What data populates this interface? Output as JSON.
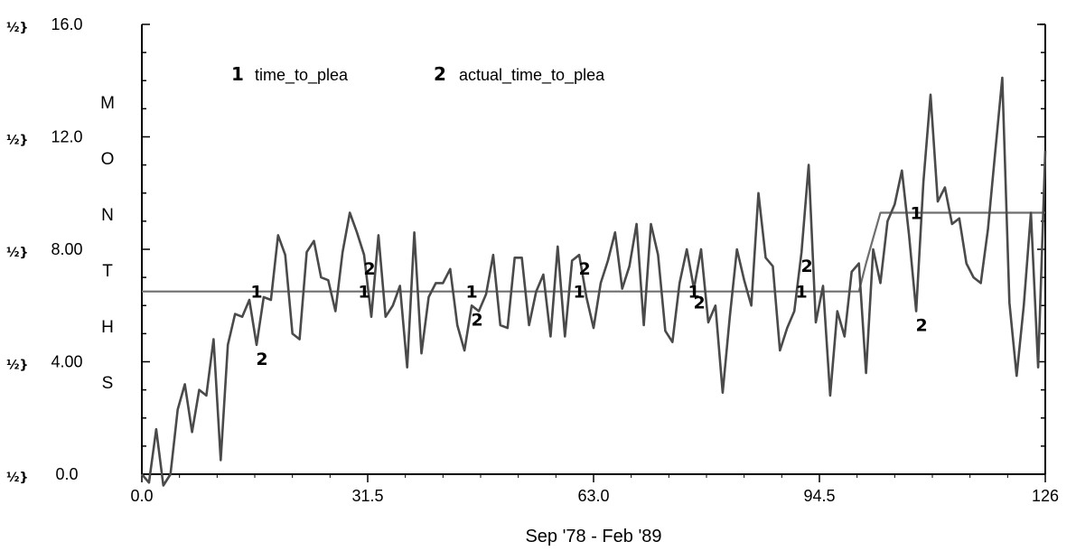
{
  "chart_data": {
    "type": "line",
    "xlabel": "Sep '78 - Feb '89",
    "ylabel": "MONTHS",
    "xlim": [
      0,
      126
    ],
    "ylim": [
      0,
      16
    ],
    "x_ticks": [
      "0.0",
      "31.5",
      "63.0",
      "94.5",
      "126"
    ],
    "y_ticks": [
      "0.0",
      "4.00",
      "8.00",
      "12.0",
      "16.0"
    ],
    "y_tick_prefix": "½}",
    "grid": false,
    "legend_position": "top-left",
    "series": [
      {
        "name": "time_to_plea",
        "marker": "1",
        "values": [
          [
            0,
            6.5
          ],
          [
            1,
            6.5
          ],
          [
            2,
            6.5
          ],
          [
            3,
            6.5
          ],
          [
            4,
            6.5
          ],
          [
            5,
            6.5
          ],
          [
            6,
            6.5
          ],
          [
            7,
            6.5
          ],
          [
            8,
            6.5
          ],
          [
            9,
            6.5
          ],
          [
            10,
            6.5
          ],
          [
            11,
            6.5
          ],
          [
            12,
            6.5
          ],
          [
            13,
            6.5
          ],
          [
            14,
            6.5
          ],
          [
            15,
            6.5
          ],
          [
            16,
            6.5
          ],
          [
            17,
            6.5
          ],
          [
            18,
            6.5
          ],
          [
            19,
            6.5
          ],
          [
            20,
            6.5
          ],
          [
            21,
            6.5
          ],
          [
            22,
            6.5
          ],
          [
            23,
            6.5
          ],
          [
            24,
            6.5
          ],
          [
            25,
            6.5
          ],
          [
            26,
            6.5
          ],
          [
            27,
            6.5
          ],
          [
            28,
            6.5
          ],
          [
            29,
            6.5
          ],
          [
            30,
            6.5
          ],
          [
            31,
            6.5
          ],
          [
            32,
            6.5
          ],
          [
            33,
            6.5
          ],
          [
            34,
            6.5
          ],
          [
            35,
            6.5
          ],
          [
            36,
            6.5
          ],
          [
            37,
            6.5
          ],
          [
            38,
            6.5
          ],
          [
            39,
            6.5
          ],
          [
            40,
            6.5
          ],
          [
            41,
            6.5
          ],
          [
            42,
            6.5
          ],
          [
            43,
            6.5
          ],
          [
            44,
            6.5
          ],
          [
            45,
            6.5
          ],
          [
            46,
            6.5
          ],
          [
            47,
            6.5
          ],
          [
            48,
            6.5
          ],
          [
            49,
            6.5
          ],
          [
            50,
            6.5
          ],
          [
            51,
            6.5
          ],
          [
            52,
            6.5
          ],
          [
            53,
            6.5
          ],
          [
            54,
            6.5
          ],
          [
            55,
            6.5
          ],
          [
            56,
            6.5
          ],
          [
            57,
            6.5
          ],
          [
            58,
            6.5
          ],
          [
            59,
            6.5
          ],
          [
            60,
            6.5
          ],
          [
            61,
            6.5
          ],
          [
            62,
            6.5
          ],
          [
            63,
            6.5
          ],
          [
            64,
            6.5
          ],
          [
            65,
            6.5
          ],
          [
            66,
            6.5
          ],
          [
            67,
            6.5
          ],
          [
            68,
            6.5
          ],
          [
            69,
            6.5
          ],
          [
            70,
            6.5
          ],
          [
            71,
            6.5
          ],
          [
            72,
            6.5
          ],
          [
            73,
            6.5
          ],
          [
            74,
            6.5
          ],
          [
            75,
            6.5
          ],
          [
            76,
            6.5
          ],
          [
            77,
            6.5
          ],
          [
            78,
            6.5
          ],
          [
            79,
            6.5
          ],
          [
            80,
            6.5
          ],
          [
            81,
            6.5
          ],
          [
            82,
            6.5
          ],
          [
            83,
            6.5
          ],
          [
            84,
            6.5
          ],
          [
            85,
            6.5
          ],
          [
            86,
            6.5
          ],
          [
            87,
            6.5
          ],
          [
            88,
            6.5
          ],
          [
            89,
            6.5
          ],
          [
            90,
            6.5
          ],
          [
            91,
            6.5
          ],
          [
            92,
            6.5
          ],
          [
            93,
            6.5
          ],
          [
            94,
            6.5
          ],
          [
            95,
            6.5
          ],
          [
            96,
            6.5
          ],
          [
            97,
            6.5
          ],
          [
            98,
            6.5
          ],
          [
            99,
            6.5
          ],
          [
            100,
            6.5
          ],
          [
            101,
            7.5
          ],
          [
            102,
            8.4
          ],
          [
            103,
            9.3
          ],
          [
            104,
            9.3
          ],
          [
            105,
            9.3
          ],
          [
            106,
            9.3
          ],
          [
            107,
            9.3
          ],
          [
            108,
            9.3
          ],
          [
            109,
            9.3
          ],
          [
            110,
            9.3
          ],
          [
            111,
            9.3
          ],
          [
            112,
            9.3
          ],
          [
            113,
            9.3
          ],
          [
            114,
            9.3
          ],
          [
            115,
            9.3
          ],
          [
            116,
            9.3
          ],
          [
            117,
            9.3
          ],
          [
            118,
            9.3
          ],
          [
            119,
            9.3
          ],
          [
            120,
            9.3
          ],
          [
            121,
            9.3
          ],
          [
            122,
            9.3
          ],
          [
            123,
            9.3
          ],
          [
            124,
            9.3
          ],
          [
            125,
            9.3
          ],
          [
            126,
            9.3
          ]
        ]
      },
      {
        "name": "actual_time_to_plea",
        "marker": "2",
        "values": [
          [
            0,
            0.0
          ],
          [
            1,
            -0.3
          ],
          [
            2,
            1.6
          ],
          [
            3,
            -0.4
          ],
          [
            4,
            0.0
          ],
          [
            5,
            2.3
          ],
          [
            6,
            3.2
          ],
          [
            7,
            1.5
          ],
          [
            8,
            3.0
          ],
          [
            9,
            2.8
          ],
          [
            10,
            4.8
          ],
          [
            11,
            0.5
          ],
          [
            12,
            4.6
          ],
          [
            13,
            5.7
          ],
          [
            14,
            5.6
          ],
          [
            15,
            6.2
          ],
          [
            16,
            4.6
          ],
          [
            17,
            6.3
          ],
          [
            18,
            6.2
          ],
          [
            19,
            8.5
          ],
          [
            20,
            7.8
          ],
          [
            21,
            5.0
          ],
          [
            22,
            4.8
          ],
          [
            23,
            7.9
          ],
          [
            24,
            8.3
          ],
          [
            25,
            7.0
          ],
          [
            26,
            6.9
          ],
          [
            27,
            5.8
          ],
          [
            28,
            7.9
          ],
          [
            29,
            9.3
          ],
          [
            30,
            8.6
          ],
          [
            31,
            7.8
          ],
          [
            32,
            5.6
          ],
          [
            33,
            8.5
          ],
          [
            34,
            5.6
          ],
          [
            35,
            6.0
          ],
          [
            36,
            6.7
          ],
          [
            37,
            3.8
          ],
          [
            38,
            8.6
          ],
          [
            39,
            4.3
          ],
          [
            40,
            6.3
          ],
          [
            41,
            6.8
          ],
          [
            42,
            6.8
          ],
          [
            43,
            7.3
          ],
          [
            44,
            5.3
          ],
          [
            45,
            4.4
          ],
          [
            46,
            6.0
          ],
          [
            47,
            5.8
          ],
          [
            48,
            6.4
          ],
          [
            49,
            7.8
          ],
          [
            50,
            5.3
          ],
          [
            51,
            5.2
          ],
          [
            52,
            7.7
          ],
          [
            53,
            7.7
          ],
          [
            54,
            5.3
          ],
          [
            55,
            6.5
          ],
          [
            56,
            7.1
          ],
          [
            57,
            4.9
          ],
          [
            58,
            8.1
          ],
          [
            59,
            4.9
          ],
          [
            60,
            7.6
          ],
          [
            61,
            7.8
          ],
          [
            62,
            6.3
          ],
          [
            63,
            5.2
          ],
          [
            64,
            6.8
          ],
          [
            65,
            7.6
          ],
          [
            66,
            8.6
          ],
          [
            67,
            6.6
          ],
          [
            68,
            7.4
          ],
          [
            69,
            8.9
          ],
          [
            70,
            5.3
          ],
          [
            71,
            8.9
          ],
          [
            72,
            7.8
          ],
          [
            73,
            5.1
          ],
          [
            74,
            4.7
          ],
          [
            75,
            6.8
          ],
          [
            76,
            8.0
          ],
          [
            77,
            6.6
          ],
          [
            78,
            8.0
          ],
          [
            79,
            5.4
          ],
          [
            80,
            6.0
          ],
          [
            81,
            2.9
          ],
          [
            82,
            5.6
          ],
          [
            83,
            8.0
          ],
          [
            84,
            6.9
          ],
          [
            85,
            6.0
          ],
          [
            86,
            10.0
          ],
          [
            87,
            7.7
          ],
          [
            88,
            7.4
          ],
          [
            89,
            4.4
          ],
          [
            90,
            5.2
          ],
          [
            91,
            5.8
          ],
          [
            92,
            7.9
          ],
          [
            93,
            11.0
          ],
          [
            94,
            5.4
          ],
          [
            95,
            6.7
          ],
          [
            96,
            2.8
          ],
          [
            97,
            5.8
          ],
          [
            98,
            4.9
          ],
          [
            99,
            7.2
          ],
          [
            100,
            7.5
          ],
          [
            101,
            3.6
          ],
          [
            102,
            8.0
          ],
          [
            103,
            6.8
          ],
          [
            104,
            9.0
          ],
          [
            105,
            9.6
          ],
          [
            106,
            10.8
          ],
          [
            107,
            8.5
          ],
          [
            108,
            5.8
          ],
          [
            109,
            10.4
          ],
          [
            110,
            13.5
          ],
          [
            111,
            9.7
          ],
          [
            112,
            10.2
          ],
          [
            113,
            8.9
          ],
          [
            114,
            9.1
          ],
          [
            115,
            7.5
          ],
          [
            116,
            7.0
          ],
          [
            117,
            6.8
          ],
          [
            118,
            8.7
          ],
          [
            119,
            11.4
          ],
          [
            120,
            14.1
          ],
          [
            121,
            6.1
          ],
          [
            122,
            3.5
          ],
          [
            123,
            6.0
          ],
          [
            124,
            9.3
          ],
          [
            125,
            3.8
          ],
          [
            126,
            11.5
          ]
        ]
      }
    ]
  }
}
